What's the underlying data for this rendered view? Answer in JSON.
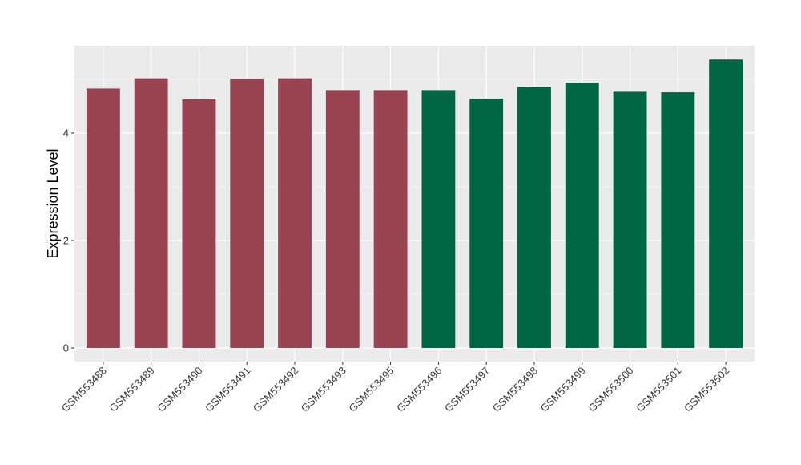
{
  "chart_data": {
    "type": "bar",
    "title": "",
    "xlabel": "",
    "ylabel": "Expression Level",
    "ylim": [
      0,
      5.5
    ],
    "yticks": [
      0,
      2,
      4
    ],
    "grid": true,
    "categories": [
      "GSM553488",
      "GSM553489",
      "GSM553490",
      "GSM553491",
      "GSM553492",
      "GSM553493",
      "GSM553495",
      "GSM553496",
      "GSM553497",
      "GSM553498",
      "GSM553499",
      "GSM553500",
      "GSM553501",
      "GSM553502"
    ],
    "values": [
      4.83,
      5.02,
      4.63,
      5.01,
      5.02,
      4.8,
      4.8,
      4.8,
      4.64,
      4.86,
      4.94,
      4.77,
      4.76,
      5.37
    ],
    "bar_colors": [
      "#9a4350",
      "#9a4350",
      "#9a4350",
      "#9a4350",
      "#9a4350",
      "#9a4350",
      "#9a4350",
      "#006644",
      "#006644",
      "#006644",
      "#006644",
      "#006644",
      "#006644",
      "#006644"
    ],
    "panel_background": "#ebebeb",
    "grid_color": "#ffffff"
  }
}
